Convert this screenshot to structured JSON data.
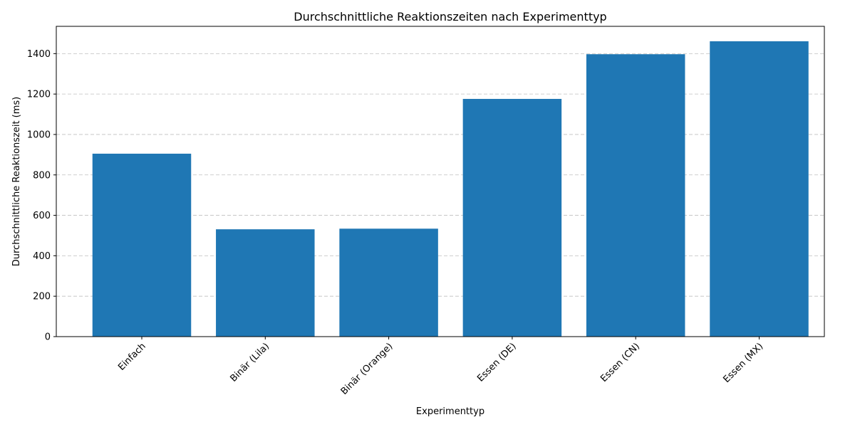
{
  "chart_data": {
    "type": "bar",
    "title": "Durchschnittliche Reaktionszeiten nach Experimenttyp",
    "xlabel": "Experimenttyp",
    "ylabel": "Durchschnittliche Reaktionszeit (ms)",
    "categories": [
      "Einfach",
      "Binär (Lila)",
      "Binär (Orange)",
      "Essen (DE)",
      "Essen (CN)",
      "Essen (MX)"
    ],
    "values": [
      905,
      531,
      534,
      1176,
      1397,
      1461
    ],
    "ylim": [
      0,
      1535
    ],
    "yticks": [
      0,
      200,
      400,
      600,
      800,
      1000,
      1200,
      1400
    ],
    "grid": "y",
    "bar_color": "#1f77b4"
  }
}
